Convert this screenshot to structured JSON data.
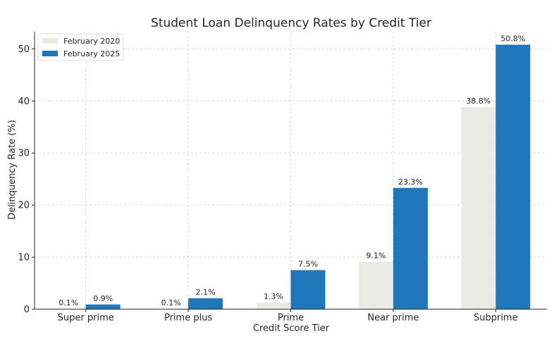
{
  "chart_data": {
    "type": "bar",
    "title": "Student Loan Delinquency Rates by Credit Tier",
    "xlabel": "Credit Score Tier",
    "ylabel": "Delinquency Rate (%)",
    "categories": [
      "Super prime",
      "Prime plus",
      "Prime",
      "Near prime",
      "Subprime"
    ],
    "series": [
      {
        "name": "February 2020",
        "values": [
          0.1,
          0.1,
          1.3,
          9.1,
          38.8
        ],
        "labels": [
          "0.1%",
          "0.1%",
          "1.3%",
          "9.1%",
          "38.8%"
        ],
        "color": "#ebebe6"
      },
      {
        "name": "February 2025",
        "values": [
          0.9,
          2.1,
          7.5,
          23.3,
          50.8
        ],
        "labels": [
          "0.9%",
          "2.1%",
          "7.5%",
          "23.3%",
          "50.8%"
        ],
        "color": "#1f77b9"
      }
    ],
    "ylim": [
      0,
      53.3
    ],
    "yticks": [
      0,
      10,
      20,
      30,
      40,
      50
    ],
    "grid": true,
    "legend": "top-left"
  }
}
